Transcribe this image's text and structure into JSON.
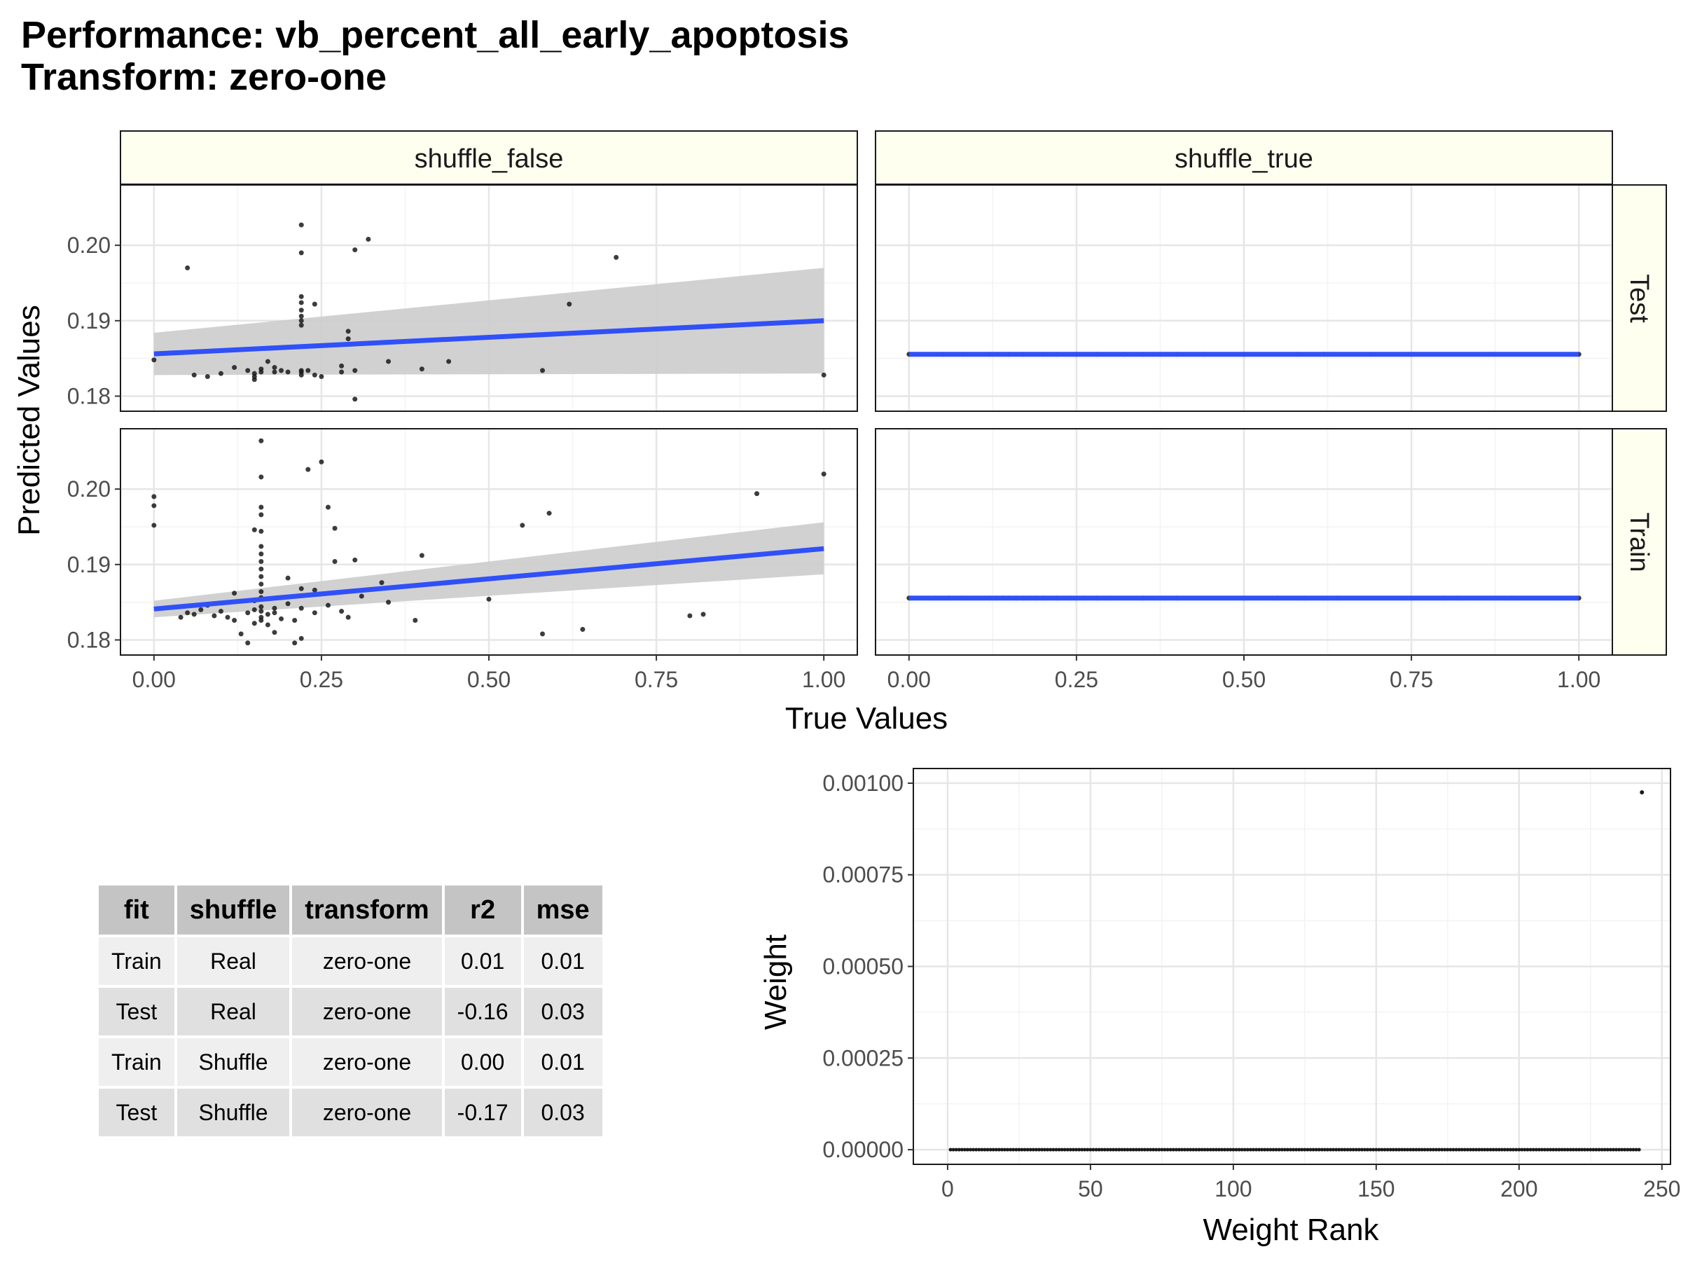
{
  "title": {
    "line1": "Performance: vb_percent_all_early_apoptosis",
    "line2": "Transform: zero-one"
  },
  "colors": {
    "strip_fill": "#fffff0",
    "fit_line": "#3050f8",
    "ribbon": "#cccccc",
    "point": "#1a1a1a",
    "grid_major": "#e6e6e6",
    "grid_minor": "#f3f3f3"
  },
  "chart_data": [
    {
      "type": "scatter",
      "facets": {
        "columns": [
          "shuffle_false",
          "shuffle_true"
        ],
        "rows": [
          "Test",
          "Train"
        ]
      },
      "xlabel": "True Values",
      "ylabel": "Predicted Values",
      "xlim": [
        0,
        1
      ],
      "ylim": [
        0.178,
        0.208
      ],
      "x_ticks": [
        0,
        0.25,
        0.5,
        0.75,
        1.0
      ],
      "x_tick_labels": [
        "0.00",
        "0.25",
        "0.50",
        "0.75",
        "1.00"
      ],
      "y_ticks": [
        0.18,
        0.19,
        0.2
      ],
      "y_tick_labels": [
        "0.18",
        "0.19",
        "0.20"
      ],
      "grid": true,
      "panels": [
        {
          "column": "shuffle_false",
          "row": "Test",
          "fit": {
            "x": [
              0,
              1
            ],
            "y": [
              0.1856,
              0.19
            ]
          },
          "ribbon": {
            "x": [
              0,
              1
            ],
            "lower": [
              0.1828,
              0.183
            ],
            "upper": [
              0.1884,
              0.197
            ]
          },
          "points": [
            [
              0.0,
              0.1848
            ],
            [
              0.05,
              0.197
            ],
            [
              0.06,
              0.1828
            ],
            [
              0.08,
              0.1826
            ],
            [
              0.1,
              0.183
            ],
            [
              0.12,
              0.1838
            ],
            [
              0.14,
              0.1834
            ],
            [
              0.15,
              0.183
            ],
            [
              0.15,
              0.1822
            ],
            [
              0.15,
              0.1826
            ],
            [
              0.16,
              0.1832
            ],
            [
              0.16,
              0.1836
            ],
            [
              0.17,
              0.1846
            ],
            [
              0.18,
              0.1838
            ],
            [
              0.18,
              0.1832
            ],
            [
              0.19,
              0.1834
            ],
            [
              0.2,
              0.1832
            ],
            [
              0.22,
              0.1834
            ],
            [
              0.22,
              0.2027
            ],
            [
              0.22,
              0.199
            ],
            [
              0.22,
              0.1932
            ],
            [
              0.22,
              0.1924
            ],
            [
              0.22,
              0.1914
            ],
            [
              0.22,
              0.1906
            ],
            [
              0.22,
              0.19
            ],
            [
              0.22,
              0.1894
            ],
            [
              0.22,
              0.1832
            ],
            [
              0.22,
              0.1828
            ],
            [
              0.23,
              0.1834
            ],
            [
              0.24,
              0.1922
            ],
            [
              0.24,
              0.1828
            ],
            [
              0.25,
              0.1826
            ],
            [
              0.28,
              0.184
            ],
            [
              0.28,
              0.1832
            ],
            [
              0.29,
              0.1886
            ],
            [
              0.29,
              0.1876
            ],
            [
              0.3,
              0.1834
            ],
            [
              0.3,
              0.1994
            ],
            [
              0.3,
              0.1796
            ],
            [
              0.32,
              0.2008
            ],
            [
              0.35,
              0.1846
            ],
            [
              0.4,
              0.1836
            ],
            [
              0.44,
              0.1846
            ],
            [
              0.58,
              0.1834
            ],
            [
              0.62,
              0.1922
            ],
            [
              0.69,
              0.1984
            ],
            [
              1.0,
              0.1828
            ]
          ]
        },
        {
          "column": "shuffle_true",
          "row": "Test",
          "fit": {
            "x": [
              0,
              1
            ],
            "y": [
              0.18555,
              0.18555
            ]
          },
          "ribbon": null,
          "points": [
            [
              0.0,
              0.18555
            ],
            [
              0.05,
              0.18555
            ],
            [
              0.08,
              0.18555
            ],
            [
              0.12,
              0.18555
            ],
            [
              0.15,
              0.18555
            ],
            [
              0.17,
              0.18555
            ],
            [
              0.2,
              0.18555
            ],
            [
              0.22,
              0.18555
            ],
            [
              0.25,
              0.18555
            ],
            [
              0.28,
              0.18555
            ],
            [
              0.32,
              0.18555
            ],
            [
              0.35,
              0.18555
            ],
            [
              0.4,
              0.18555
            ],
            [
              0.44,
              0.18555
            ],
            [
              0.5,
              0.18555
            ],
            [
              0.58,
              0.18555
            ],
            [
              0.62,
              0.18555
            ],
            [
              0.69,
              0.18555
            ],
            [
              1.0,
              0.18555
            ]
          ]
        },
        {
          "column": "shuffle_false",
          "row": "Train",
          "fit": {
            "x": [
              0,
              1
            ],
            "y": [
              0.1841,
              0.1921
            ]
          },
          "ribbon": {
            "x": [
              0,
              1
            ],
            "lower": [
              0.183,
              0.1887
            ],
            "upper": [
              0.1852,
              0.1956
            ]
          },
          "points": [
            [
              0.0,
              0.199
            ],
            [
              0.0,
              0.1978
            ],
            [
              0.0,
              0.1952
            ],
            [
              0.04,
              0.183
            ],
            [
              0.05,
              0.1836
            ],
            [
              0.06,
              0.1834
            ],
            [
              0.07,
              0.184
            ],
            [
              0.08,
              0.1846
            ],
            [
              0.09,
              0.1832
            ],
            [
              0.1,
              0.1838
            ],
            [
              0.11,
              0.183
            ],
            [
              0.12,
              0.1826
            ],
            [
              0.12,
              0.1862
            ],
            [
              0.13,
              0.1808
            ],
            [
              0.14,
              0.1796
            ],
            [
              0.14,
              0.1836
            ],
            [
              0.15,
              0.184
            ],
            [
              0.15,
              0.1822
            ],
            [
              0.15,
              0.1852
            ],
            [
              0.15,
              0.1946
            ],
            [
              0.16,
              0.183
            ],
            [
              0.16,
              0.1838
            ],
            [
              0.16,
              0.1844
            ],
            [
              0.16,
              0.1826
            ],
            [
              0.16,
              0.1856
            ],
            [
              0.16,
              0.1864
            ],
            [
              0.16,
              0.1874
            ],
            [
              0.16,
              0.1884
            ],
            [
              0.16,
              0.1894
            ],
            [
              0.16,
              0.1904
            ],
            [
              0.16,
              0.1914
            ],
            [
              0.16,
              0.1924
            ],
            [
              0.16,
              0.1944
            ],
            [
              0.16,
              0.1966
            ],
            [
              0.16,
              0.1976
            ],
            [
              0.16,
              0.2016
            ],
            [
              0.16,
              0.2064
            ],
            [
              0.17,
              0.1834
            ],
            [
              0.17,
              0.182
            ],
            [
              0.18,
              0.1836
            ],
            [
              0.18,
              0.1842
            ],
            [
              0.18,
              0.181
            ],
            [
              0.19,
              0.1828
            ],
            [
              0.19,
              0.1856
            ],
            [
              0.2,
              0.1882
            ],
            [
              0.2,
              0.1848
            ],
            [
              0.21,
              0.1826
            ],
            [
              0.21,
              0.1796
            ],
            [
              0.22,
              0.1868
            ],
            [
              0.22,
              0.1842
            ],
            [
              0.22,
              0.1802
            ],
            [
              0.23,
              0.2026
            ],
            [
              0.24,
              0.1836
            ],
            [
              0.24,
              0.1866
            ],
            [
              0.25,
              0.2036
            ],
            [
              0.26,
              0.1976
            ],
            [
              0.26,
              0.1846
            ],
            [
              0.27,
              0.1948
            ],
            [
              0.27,
              0.1904
            ],
            [
              0.28,
              0.1838
            ],
            [
              0.29,
              0.183
            ],
            [
              0.3,
              0.1906
            ],
            [
              0.31,
              0.1858
            ],
            [
              0.34,
              0.1876
            ],
            [
              0.35,
              0.185
            ],
            [
              0.39,
              0.1826
            ],
            [
              0.4,
              0.1912
            ],
            [
              0.5,
              0.1854
            ],
            [
              0.55,
              0.1952
            ],
            [
              0.58,
              0.1808
            ],
            [
              0.59,
              0.1968
            ],
            [
              0.64,
              0.1814
            ],
            [
              0.8,
              0.1832
            ],
            [
              0.82,
              0.1834
            ],
            [
              0.9,
              0.1994
            ],
            [
              1.0,
              0.202
            ]
          ]
        },
        {
          "column": "shuffle_true",
          "row": "Train",
          "fit": {
            "x": [
              0,
              1
            ],
            "y": [
              0.18555,
              0.18555
            ]
          },
          "ribbon": null,
          "points": [
            [
              0.0,
              0.18555
            ],
            [
              0.04,
              0.18555
            ],
            [
              0.06,
              0.18555
            ],
            [
              0.08,
              0.18555
            ],
            [
              0.1,
              0.18555
            ],
            [
              0.12,
              0.18555
            ],
            [
              0.13,
              0.18555
            ],
            [
              0.14,
              0.18555
            ],
            [
              0.15,
              0.18555
            ],
            [
              0.16,
              0.18555
            ],
            [
              0.17,
              0.18555
            ],
            [
              0.18,
              0.18555
            ],
            [
              0.19,
              0.18555
            ],
            [
              0.2,
              0.18555
            ],
            [
              0.22,
              0.18555
            ],
            [
              0.24,
              0.18555
            ],
            [
              0.26,
              0.18555
            ],
            [
              0.28,
              0.18555
            ],
            [
              0.3,
              0.18555
            ],
            [
              0.35,
              0.18555
            ],
            [
              0.4,
              0.18555
            ],
            [
              0.5,
              0.18555
            ],
            [
              0.55,
              0.18555
            ],
            [
              0.59,
              0.18555
            ],
            [
              0.64,
              0.18555
            ],
            [
              0.8,
              0.18555
            ],
            [
              0.82,
              0.18555
            ],
            [
              0.9,
              0.18555
            ],
            [
              1.0,
              0.18555
            ]
          ]
        }
      ]
    },
    {
      "type": "table",
      "columns": [
        "fit",
        "shuffle",
        "transform",
        "r2",
        "mse"
      ],
      "rows": [
        [
          "Train",
          "Real",
          "zero-one",
          "0.01",
          "0.01"
        ],
        [
          "Test",
          "Real",
          "zero-one",
          "-0.16",
          "0.03"
        ],
        [
          "Train",
          "Shuffle",
          "zero-one",
          "0.00",
          "0.01"
        ],
        [
          "Test",
          "Shuffle",
          "zero-one",
          "-0.17",
          "0.03"
        ]
      ]
    },
    {
      "type": "scatter",
      "xlabel": "Weight Rank",
      "ylabel": "Weight",
      "xlim": [
        -12,
        253
      ],
      "ylim": [
        -4e-05,
        0.00104
      ],
      "x_ticks": [
        0,
        50,
        100,
        150,
        200,
        250
      ],
      "x_tick_labels": [
        "0",
        "50",
        "100",
        "150",
        "200",
        "250"
      ],
      "y_ticks": [
        0,
        0.00025,
        0.0005,
        0.00075,
        0.001
      ],
      "y_tick_labels": [
        "0.00000",
        "0.00025",
        "0.00050",
        "0.00075",
        "0.00100"
      ],
      "grid": true,
      "zero_points_from": 1,
      "zero_points_to": 242,
      "highlight_points": [
        [
          243,
          0.000975
        ]
      ]
    }
  ]
}
